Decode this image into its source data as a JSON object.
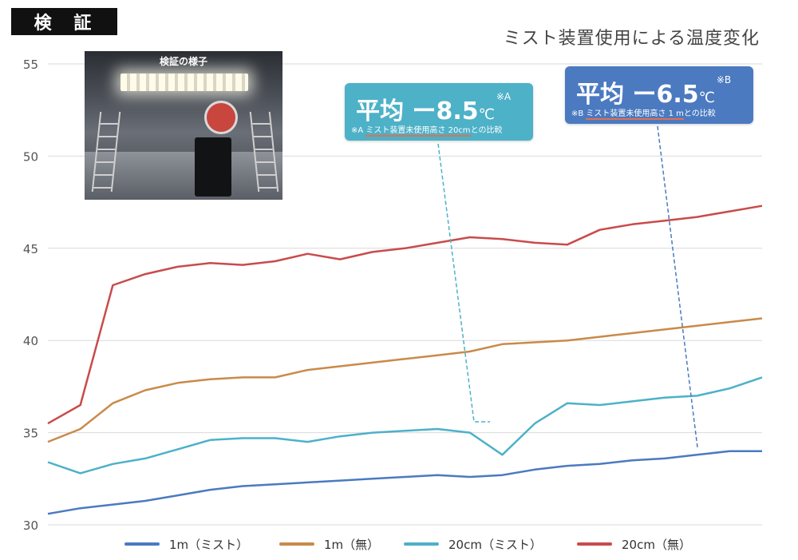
{
  "header": {
    "tag": "検 証",
    "title": "ミスト装置使用による温度変化"
  },
  "photo": {
    "caption": "検証の様子"
  },
  "callouts": {
    "a": {
      "main": "平均 ー8.5",
      "unit": "℃",
      "mark": "※A",
      "note_prefix": "※A ",
      "note_underlined": "ミスト装置未使用高さ 20cm",
      "note_suffix": "との比較"
    },
    "b": {
      "main": "平均 ー6.5",
      "unit": "℃",
      "mark": "※B",
      "note_prefix": "※B ",
      "note_underlined": "ミスト装置未使用高さ 1 m",
      "note_suffix": "との比較"
    }
  },
  "colors": {
    "1m_mist": "#4b7ac0",
    "1m_none": "#c98a4a",
    "20cm_mist": "#4db1c8",
    "20cm_none": "#c94b4b"
  },
  "chart_data": {
    "type": "line",
    "title": "ミスト装置使用による温度変化",
    "xlabel": "",
    "ylabel": "",
    "ylim": [
      30,
      55
    ],
    "yticks": [
      30,
      35,
      40,
      45,
      50,
      55
    ],
    "grid": true,
    "legend": "bottom",
    "x": [
      0,
      20,
      40,
      60,
      80,
      100,
      120,
      140,
      160,
      180,
      200,
      220,
      240,
      260,
      280,
      300,
      320,
      340,
      360,
      380,
      400,
      420,
      440
    ],
    "series": [
      {
        "name": "1m（ミスト）",
        "color": "#4b7ac0",
        "values": [
          30.6,
          30.9,
          31.1,
          31.3,
          31.6,
          31.9,
          32.1,
          32.2,
          32.3,
          32.4,
          32.5,
          32.6,
          32.7,
          32.6,
          32.7,
          33.0,
          33.2,
          33.3,
          33.5,
          33.6,
          33.8,
          34.0,
          34.0
        ]
      },
      {
        "name": "1m（無）",
        "color": "#c98a4a",
        "values": [
          34.5,
          35.2,
          36.6,
          37.3,
          37.7,
          37.9,
          38.0,
          38.0,
          38.4,
          38.6,
          38.8,
          39.0,
          39.2,
          39.4,
          39.8,
          39.9,
          40.0,
          40.2,
          40.4,
          40.6,
          40.8,
          41.0,
          41.2
        ]
      },
      {
        "name": "20cm（ミスト）",
        "color": "#4db1c8",
        "values": [
          33.4,
          32.8,
          33.3,
          33.6,
          34.1,
          34.6,
          34.7,
          34.7,
          34.5,
          34.8,
          35.0,
          35.1,
          35.2,
          35.0,
          33.8,
          35.5,
          36.6,
          36.5,
          36.7,
          36.9,
          37.0,
          37.4,
          38.0
        ]
      },
      {
        "name": "20cm（無）",
        "color": "#c94b4b",
        "values": [
          35.5,
          36.5,
          43.0,
          43.6,
          44.0,
          44.2,
          44.1,
          44.3,
          44.7,
          44.4,
          44.8,
          45.0,
          45.3,
          45.6,
          45.5,
          45.3,
          45.2,
          46.0,
          46.3,
          46.5,
          46.7,
          47.0,
          47.3
        ]
      }
    ]
  }
}
